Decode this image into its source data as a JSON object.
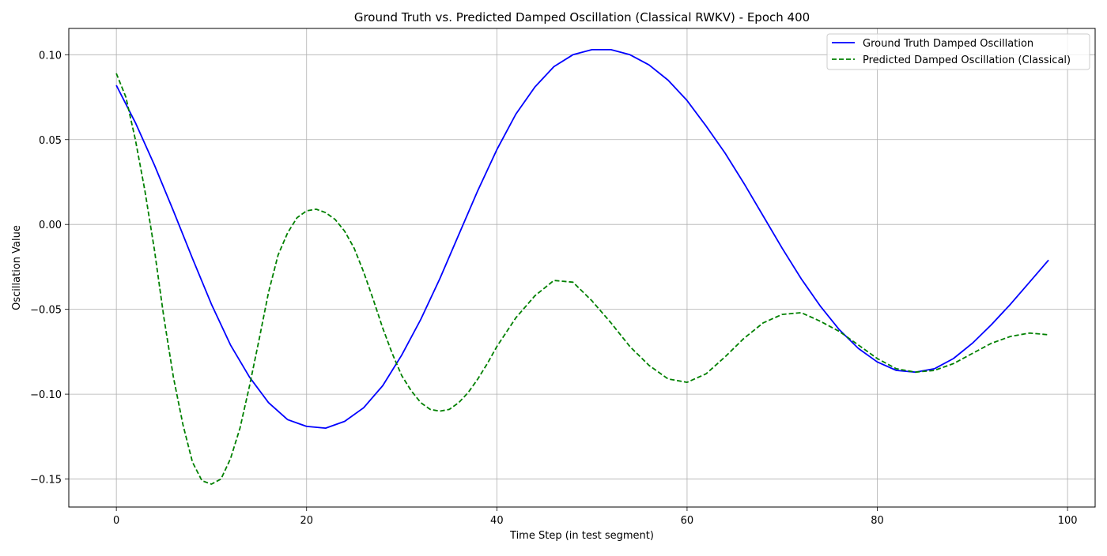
{
  "chart_data": {
    "type": "line",
    "title": "Ground Truth vs. Predicted Damped Oscillation (Classical RWKV) - Epoch 400",
    "xlabel": "Time Step (in test segment)",
    "ylabel": "Oscillation Value",
    "xlim": [
      -5,
      102.9
    ],
    "ylim": [
      -0.1665,
      0.1155
    ],
    "x_ticks": [
      0,
      20,
      40,
      60,
      80,
      100
    ],
    "y_ticks": [
      0.1,
      0.05,
      0.0,
      -0.05,
      -0.1,
      -0.15
    ],
    "x_tick_labels": [
      "0",
      "20",
      "40",
      "60",
      "80",
      "100"
    ],
    "y_tick_labels": [
      "0.10",
      "0.05",
      "0.00",
      "−0.05",
      "−0.10",
      "−0.15"
    ],
    "grid": true,
    "legend_position": "top-right",
    "series": [
      {
        "name": "Ground Truth Damped Oscillation",
        "color": "#0000ff",
        "style": "solid",
        "points": [
          [
            0,
            0.082
          ],
          [
            2,
            0.06
          ],
          [
            4,
            0.035
          ],
          [
            6,
            0.008
          ],
          [
            8,
            -0.02
          ],
          [
            10,
            -0.047
          ],
          [
            12,
            -0.071
          ],
          [
            14,
            -0.09
          ],
          [
            16,
            -0.105
          ],
          [
            18,
            -0.115
          ],
          [
            20,
            -0.119
          ],
          [
            22,
            -0.12
          ],
          [
            24,
            -0.116
          ],
          [
            26,
            -0.108
          ],
          [
            28,
            -0.095
          ],
          [
            30,
            -0.077
          ],
          [
            32,
            -0.056
          ],
          [
            34,
            -0.032
          ],
          [
            36,
            -0.006
          ],
          [
            38,
            0.02
          ],
          [
            40,
            0.044
          ],
          [
            42,
            0.065
          ],
          [
            44,
            0.081
          ],
          [
            46,
            0.093
          ],
          [
            48,
            0.1
          ],
          [
            50,
            0.103
          ],
          [
            52,
            0.103
          ],
          [
            54,
            0.1
          ],
          [
            56,
            0.094
          ],
          [
            58,
            0.085
          ],
          [
            60,
            0.073
          ],
          [
            62,
            0.058
          ],
          [
            64,
            0.042
          ],
          [
            66,
            0.024
          ],
          [
            68,
            0.005
          ],
          [
            70,
            -0.014
          ],
          [
            72,
            -0.032
          ],
          [
            74,
            -0.048
          ],
          [
            76,
            -0.062
          ],
          [
            78,
            -0.073
          ],
          [
            80,
            -0.081
          ],
          [
            82,
            -0.086
          ],
          [
            84,
            -0.087
          ],
          [
            86,
            -0.085
          ],
          [
            88,
            -0.079
          ],
          [
            90,
            -0.07
          ],
          [
            92,
            -0.059
          ],
          [
            94,
            -0.047
          ],
          [
            96,
            -0.034
          ],
          [
            98,
            -0.021
          ]
        ]
      },
      {
        "name": "Predicted Damped Oscillation (Classical)",
        "color": "#008000",
        "style": "dashed",
        "points": [
          [
            0,
            0.089
          ],
          [
            1,
            0.075
          ],
          [
            2,
            0.05
          ],
          [
            3,
            0.02
          ],
          [
            4,
            -0.015
          ],
          [
            5,
            -0.055
          ],
          [
            6,
            -0.09
          ],
          [
            7,
            -0.118
          ],
          [
            8,
            -0.14
          ],
          [
            9,
            -0.151
          ],
          [
            10,
            -0.153
          ],
          [
            11,
            -0.15
          ],
          [
            12,
            -0.138
          ],
          [
            13,
            -0.12
          ],
          [
            14,
            -0.095
          ],
          [
            15,
            -0.068
          ],
          [
            16,
            -0.04
          ],
          [
            17,
            -0.018
          ],
          [
            18,
            -0.005
          ],
          [
            19,
            0.004
          ],
          [
            20,
            0.008
          ],
          [
            21,
            0.009
          ],
          [
            22,
            0.007
          ],
          [
            23,
            0.003
          ],
          [
            24,
            -0.004
          ],
          [
            25,
            -0.014
          ],
          [
            26,
            -0.028
          ],
          [
            27,
            -0.044
          ],
          [
            28,
            -0.061
          ],
          [
            29,
            -0.076
          ],
          [
            30,
            -0.089
          ],
          [
            31,
            -0.098
          ],
          [
            32,
            -0.105
          ],
          [
            33,
            -0.109
          ],
          [
            34,
            -0.11
          ],
          [
            35,
            -0.109
          ],
          [
            36,
            -0.105
          ],
          [
            37,
            -0.099
          ],
          [
            38,
            -0.091
          ],
          [
            39,
            -0.082
          ],
          [
            40,
            -0.072
          ],
          [
            42,
            -0.055
          ],
          [
            44,
            -0.042
          ],
          [
            46,
            -0.033
          ],
          [
            48,
            -0.034
          ],
          [
            50,
            -0.045
          ],
          [
            52,
            -0.058
          ],
          [
            54,
            -0.072
          ],
          [
            56,
            -0.083
          ],
          [
            58,
            -0.091
          ],
          [
            60,
            -0.093
          ],
          [
            62,
            -0.088
          ],
          [
            64,
            -0.078
          ],
          [
            66,
            -0.067
          ],
          [
            68,
            -0.058
          ],
          [
            70,
            -0.053
          ],
          [
            72,
            -0.052
          ],
          [
            74,
            -0.057
          ],
          [
            76,
            -0.063
          ],
          [
            78,
            -0.071
          ],
          [
            80,
            -0.079
          ],
          [
            82,
            -0.085
          ],
          [
            84,
            -0.087
          ],
          [
            86,
            -0.086
          ],
          [
            88,
            -0.082
          ],
          [
            90,
            -0.076
          ],
          [
            92,
            -0.07
          ],
          [
            94,
            -0.066
          ],
          [
            96,
            -0.064
          ],
          [
            98,
            -0.065
          ]
        ]
      }
    ]
  }
}
